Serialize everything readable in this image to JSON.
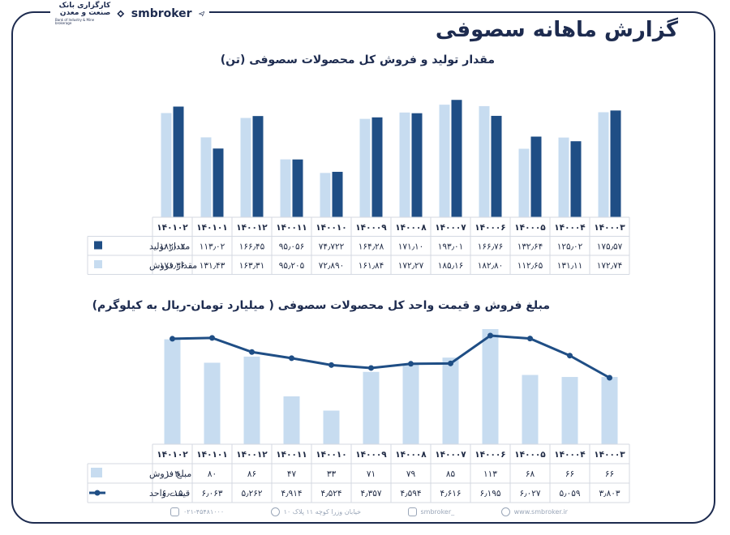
{
  "header": {
    "title": "گزارش ماهانه سصوفی",
    "brand_bank": "کارگزاری بانک صنعت و معدن",
    "brand_bank_en": "Bank of Industry & Mine brokerage",
    "brand_site": "smbroker"
  },
  "chart_data": [
    {
      "type": "bar",
      "title": "مقدار تولید و فروش کل محصولات سصوفی (تن)",
      "categories": [
        "۱۴۰۰۰۳",
        "۱۴۰۰۰۴",
        "۱۴۰۰۰۵",
        "۱۴۰۰۰۶",
        "۱۴۰۰۰۷",
        "۱۴۰۰۰۸",
        "۱۴۰۰۰۹",
        "۱۴۰۰۱۰",
        "۱۴۰۰۱۱",
        "۱۴۰۰۱۲",
        "۱۴۰۱۰۱",
        "۱۴۰۱۰۲"
      ],
      "x_order": "right-to-left",
      "series": [
        {
          "name": "مقدار تولید",
          "color": "#1f4e85",
          "values": [
            175.57,
            125.02,
            132.64,
            166.76,
            193.01,
            171.1,
            164.28,
            74.722,
            95.056,
            166.45,
            113.02,
            182.02
          ],
          "labels": [
            "۱۷۵٫۵۷",
            "۱۲۵٫۰۲",
            "۱۳۲٫۶۴",
            "۱۶۶٫۷۶",
            "۱۹۳٫۰۱",
            "۱۷۱٫۱۰",
            "۱۶۴٫۲۸",
            "۷۴٫۷۲۲",
            "۹۵٫۰۵۶",
            "۱۶۶٫۴۵",
            "۱۱۳٫۰۲",
            "۱۸۲٫۰۲"
          ]
        },
        {
          "name": "مقدار فروش",
          "color": "#c7dcf0",
          "values": [
            172.74,
            131.11,
            112.65,
            182.8,
            185.16,
            172.27,
            161.84,
            72.89,
            95.205,
            163.31,
            131.43,
            171.36
          ],
          "labels": [
            "۱۷۲٫۷۴",
            "۱۳۱٫۱۱",
            "۱۱۲٫۶۵",
            "۱۸۲٫۸۰",
            "۱۸۵٫۱۶",
            "۱۷۲٫۲۷",
            "۱۶۱٫۸۴",
            "۷۲٫۸۹۰",
            "۹۵٫۲۰۵",
            "۱۶۳٫۳۱",
            "۱۳۱٫۴۳",
            "۱۷۱٫۳۶"
          ]
        }
      ],
      "ylim": [
        0,
        200
      ],
      "grid": false
    },
    {
      "type": "bar+line",
      "title": "مبلغ فروش و قیمت واحد کل محصولات سصوفی ( میلیارد تومان-ریال به کیلوگرم)",
      "categories": [
        "۱۴۰۰۰۳",
        "۱۴۰۰۰۴",
        "۱۴۰۰۰۵",
        "۱۴۰۰۰۶",
        "۱۴۰۰۰۷",
        "۱۴۰۰۰۸",
        "۱۴۰۰۰۹",
        "۱۴۰۰۱۰",
        "۱۴۰۰۱۱",
        "۱۴۰۰۱۲",
        "۱۴۰۱۰۱",
        "۱۴۰۱۰۲"
      ],
      "x_order": "right-to-left",
      "series": [
        {
          "name": "مبلغ فروش",
          "type": "bar",
          "color": "#c7dcf0",
          "values": [
            66,
            66,
            68,
            113,
            85,
            79,
            71,
            33,
            47,
            86,
            80,
            103
          ],
          "labels": [
            "۶۶",
            "۶۶",
            "۶۸",
            "۱۱۳",
            "۸۵",
            "۷۹",
            "۷۱",
            "۳۳",
            "۴۷",
            "۸۶",
            "۸۰",
            "۱۰۳"
          ]
        },
        {
          "name": "قیمت واحد",
          "type": "line",
          "color": "#1f4e85",
          "values": [
            3803,
            5059,
            6027,
            6195,
            4616,
            4594,
            4357,
            4524,
            4914,
            5262,
            6063,
            6015
          ],
          "labels": [
            "۳٫۸۰۳",
            "۵٫۰۵۹",
            "۶٫۰۲۷",
            "۶٫۱۹۵",
            "۴٫۶۱۶",
            "۴٫۵۹۴",
            "۴٫۳۵۷",
            "۴٫۵۲۴",
            "۴٫۹۱۴",
            "۵٫۲۶۲",
            "۶٫۰۶۳",
            "۶٫۰۱۵"
          ]
        }
      ],
      "grid": false
    }
  ],
  "footer": {
    "phone": "۰۲۱-۴۵۴۸۱۰۰۰",
    "address": "خیابان وزرا کوچه ۱۱ پلاک ۱۰",
    "instagram": "smbroker_",
    "website": "www.smbroker.ir"
  },
  "colors": {
    "dark": "#1f4e85",
    "light": "#c7dcf0",
    "frame": "#1d2b4f"
  }
}
